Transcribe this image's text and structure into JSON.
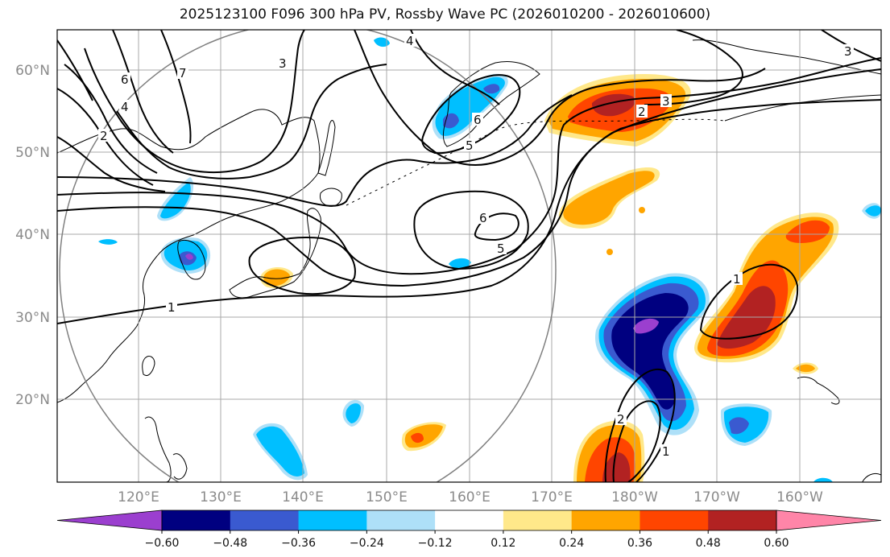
{
  "title": "2025123100 F096 300 hPa PV, Rossby Wave PC (2026010200 - 2026010600)",
  "lat_labels": [
    "60°N",
    "50°N",
    "40°N",
    "30°N",
    "20°N"
  ],
  "lon_labels": [
    "120°E",
    "130°E",
    "140°E",
    "150°E",
    "160°E",
    "170°E",
    "180°W",
    "170°W",
    "160°W"
  ],
  "colorbar": {
    "ticks": [
      "−0.60",
      "−0.48",
      "−0.36",
      "−0.24",
      "−0.12",
      "0.12",
      "0.24",
      "0.36",
      "0.48",
      "0.60"
    ],
    "colors": [
      "#9b3fcf",
      "#000080",
      "#3a5ad0",
      "#00bfff",
      "#aee0f8",
      "#ffffff",
      "#ffe88a",
      "#ffa500",
      "#ff4500",
      "#b22222",
      "#ff85a8"
    ]
  },
  "contour_labels": [
    "1",
    "2",
    "3",
    "4",
    "5",
    "6",
    "7"
  ],
  "colors": {
    "neg_strong": "#000080",
    "neg_mid": "#3a5ad0",
    "neg_light": "#00bfff",
    "pos_light": "#ffa500",
    "pos_mid": "#ff4500",
    "pos_strong": "#b22222",
    "grid": "#a9a9a9",
    "circle": "#808080"
  }
}
